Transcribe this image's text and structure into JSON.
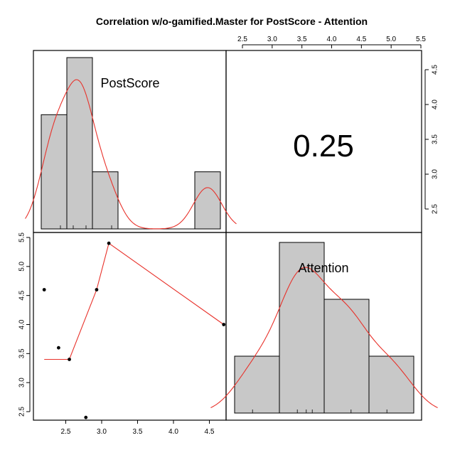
{
  "title": "Correlation w/o-gamified.Master for PostScore - Attention",
  "colors": {
    "hist_fill": "#c8c8c8",
    "hist_stroke": "#000000",
    "curve": "#e8322b",
    "point": "#000000"
  },
  "chart_data": [
    {
      "panel": "top-left",
      "type": "bar",
      "label": "PostScore",
      "bins": [
        [
          2.2,
          2.6
        ],
        [
          2.6,
          3.0
        ],
        [
          3.0,
          3.4
        ],
        [
          3.4,
          3.8
        ],
        [
          3.8,
          4.2
        ],
        [
          4.2,
          4.6
        ],
        [
          4.6,
          5.0
        ]
      ],
      "values": [
        2,
        3,
        1,
        0,
        0,
        0,
        1
      ],
      "density_curve": true,
      "rug": [
        2.5,
        2.7,
        2.9,
        3.0,
        3.3,
        4.6
      ]
    },
    {
      "panel": "top-right",
      "type": "table",
      "correlation": "0.25"
    },
    {
      "panel": "bottom-left",
      "type": "scatter",
      "x": [
        2.2,
        2.4,
        2.55,
        2.78,
        2.93,
        3.1,
        4.7
      ],
      "y": [
        4.6,
        3.6,
        3.4,
        2.4,
        4.6,
        5.4,
        4.0
      ],
      "smooth_x": [
        2.2,
        2.55,
        2.93,
        3.1,
        4.7
      ],
      "smooth_y": [
        3.4,
        3.4,
        4.6,
        5.4,
        4.0
      ],
      "xlim": [
        2.05,
        4.85
      ],
      "ylim": [
        2.2,
        5.5
      ],
      "xticks": [
        "2.5",
        "3.0",
        "3.5",
        "4.0",
        "4.5"
      ],
      "yticks": [
        "2.5",
        "3.0",
        "3.5",
        "4.0",
        "4.5",
        "5.0",
        "5.5"
      ]
    },
    {
      "panel": "bottom-right",
      "type": "bar",
      "label": "Attention",
      "bins": [
        [
          2.4,
          3.15
        ],
        [
          3.15,
          3.9
        ],
        [
          3.9,
          4.65
        ],
        [
          4.65,
          5.4
        ]
      ],
      "values": [
        1,
        3,
        2,
        1
      ],
      "density_curve": true,
      "rug": [
        2.7,
        3.45,
        3.6,
        3.7,
        4.35,
        4.95
      ],
      "top_axis_ticks": [
        "2.5",
        "3.0",
        "3.5",
        "4.0",
        "4.5",
        "5.0",
        "5.5"
      ],
      "right_axis_ticks": [
        "2.5",
        "3.0",
        "3.5",
        "4.0",
        "4.5"
      ]
    }
  ]
}
